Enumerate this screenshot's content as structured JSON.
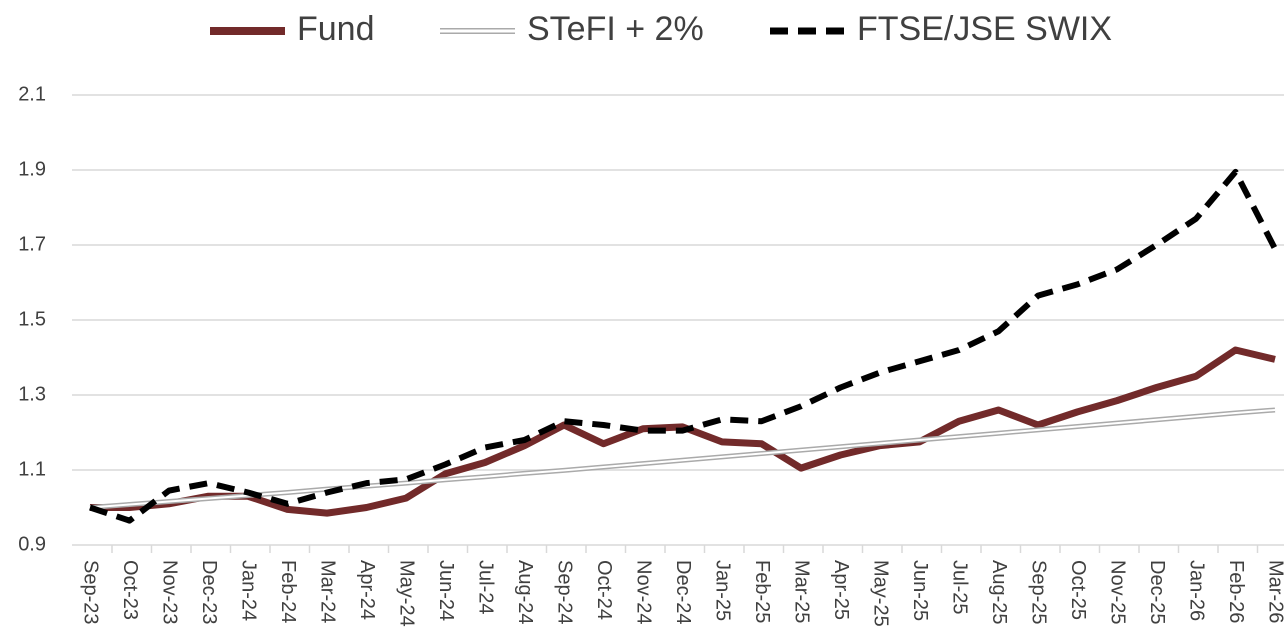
{
  "chart_data": {
    "type": "line",
    "categories": [
      "Sep-23",
      "Oct-23",
      "Nov-23",
      "Dec-23",
      "Jan-24",
      "Feb-24",
      "Mar-24",
      "Apr-24",
      "May-24",
      "Jun-24",
      "Jul-24",
      "Aug-24",
      "Sep-24",
      "Oct-24",
      "Nov-24",
      "Dec-24",
      "Jan-25",
      "Feb-25",
      "Mar-25",
      "Apr-25",
      "May-25",
      "Jun-25",
      "Jul-25",
      "Aug-25",
      "Sep-25",
      "Oct-25",
      "Nov-25",
      "Dec-25",
      "Jan-26",
      "Feb-26",
      "Mar-26"
    ],
    "series": [
      {
        "name": "Fund",
        "color": "#722a2a",
        "style": "solid",
        "values": [
          1.0,
          1.0,
          1.01,
          1.03,
          1.03,
          0.995,
          0.985,
          1.0,
          1.025,
          1.09,
          1.12,
          1.165,
          1.22,
          1.17,
          1.21,
          1.215,
          1.175,
          1.17,
          1.105,
          1.14,
          1.165,
          1.175,
          1.23,
          1.26,
          1.22,
          1.255,
          1.285,
          1.32,
          1.35,
          1.42,
          1.395
        ]
      },
      {
        "name": "STeFI + 2%",
        "color": "#aaaaaa",
        "style": "double",
        "values": [
          1.0,
          1.008,
          1.016,
          1.024,
          1.032,
          1.04,
          1.049,
          1.057,
          1.065,
          1.074,
          1.082,
          1.091,
          1.099,
          1.108,
          1.117,
          1.126,
          1.135,
          1.144,
          1.153,
          1.162,
          1.171,
          1.18,
          1.189,
          1.198,
          1.207,
          1.216,
          1.225,
          1.234,
          1.243,
          1.252,
          1.26
        ]
      },
      {
        "name": "FTSE/JSE SWIX",
        "color": "#000000",
        "style": "dashed",
        "values": [
          1.0,
          0.965,
          1.045,
          1.065,
          1.04,
          1.01,
          1.04,
          1.065,
          1.075,
          1.115,
          1.16,
          1.18,
          1.23,
          1.22,
          1.205,
          1.205,
          1.235,
          1.23,
          1.27,
          1.32,
          1.36,
          1.39,
          1.42,
          1.47,
          1.565,
          1.595,
          1.635,
          1.7,
          1.77,
          1.895,
          1.69
        ]
      }
    ],
    "ylim": [
      0.9,
      2.1
    ],
    "yticks": [
      0.9,
      1.1,
      1.3,
      1.5,
      1.7,
      1.9,
      2.1
    ],
    "grid": true,
    "legend": "top"
  }
}
